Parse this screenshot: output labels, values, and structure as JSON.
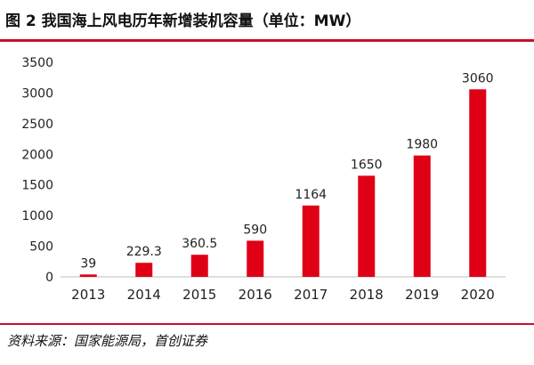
{
  "figure": {
    "title": "图 2  我国海上风电历年新增装机容量（单位：MW）",
    "source": "资料来源：国家能源局，首创证券"
  },
  "colors": {
    "bar": "#e00016",
    "rule": "#c8102e"
  },
  "chart_data": {
    "type": "bar",
    "title": "",
    "xlabel": "",
    "ylabel": "",
    "categories": [
      "2013",
      "2014",
      "2015",
      "2016",
      "2017",
      "2018",
      "2019",
      "2020"
    ],
    "values": [
      39,
      229.3,
      360.5,
      590,
      1164,
      1650,
      1980,
      3060
    ],
    "value_labels": [
      "39",
      "229.3",
      "360.5",
      "590",
      "1164",
      "1650",
      "1980",
      "3060"
    ],
    "ylim": [
      0,
      3500
    ],
    "yticks": [
      0,
      500,
      1000,
      1500,
      2000,
      2500,
      3000,
      3500
    ],
    "grid": false,
    "legend": "none"
  }
}
